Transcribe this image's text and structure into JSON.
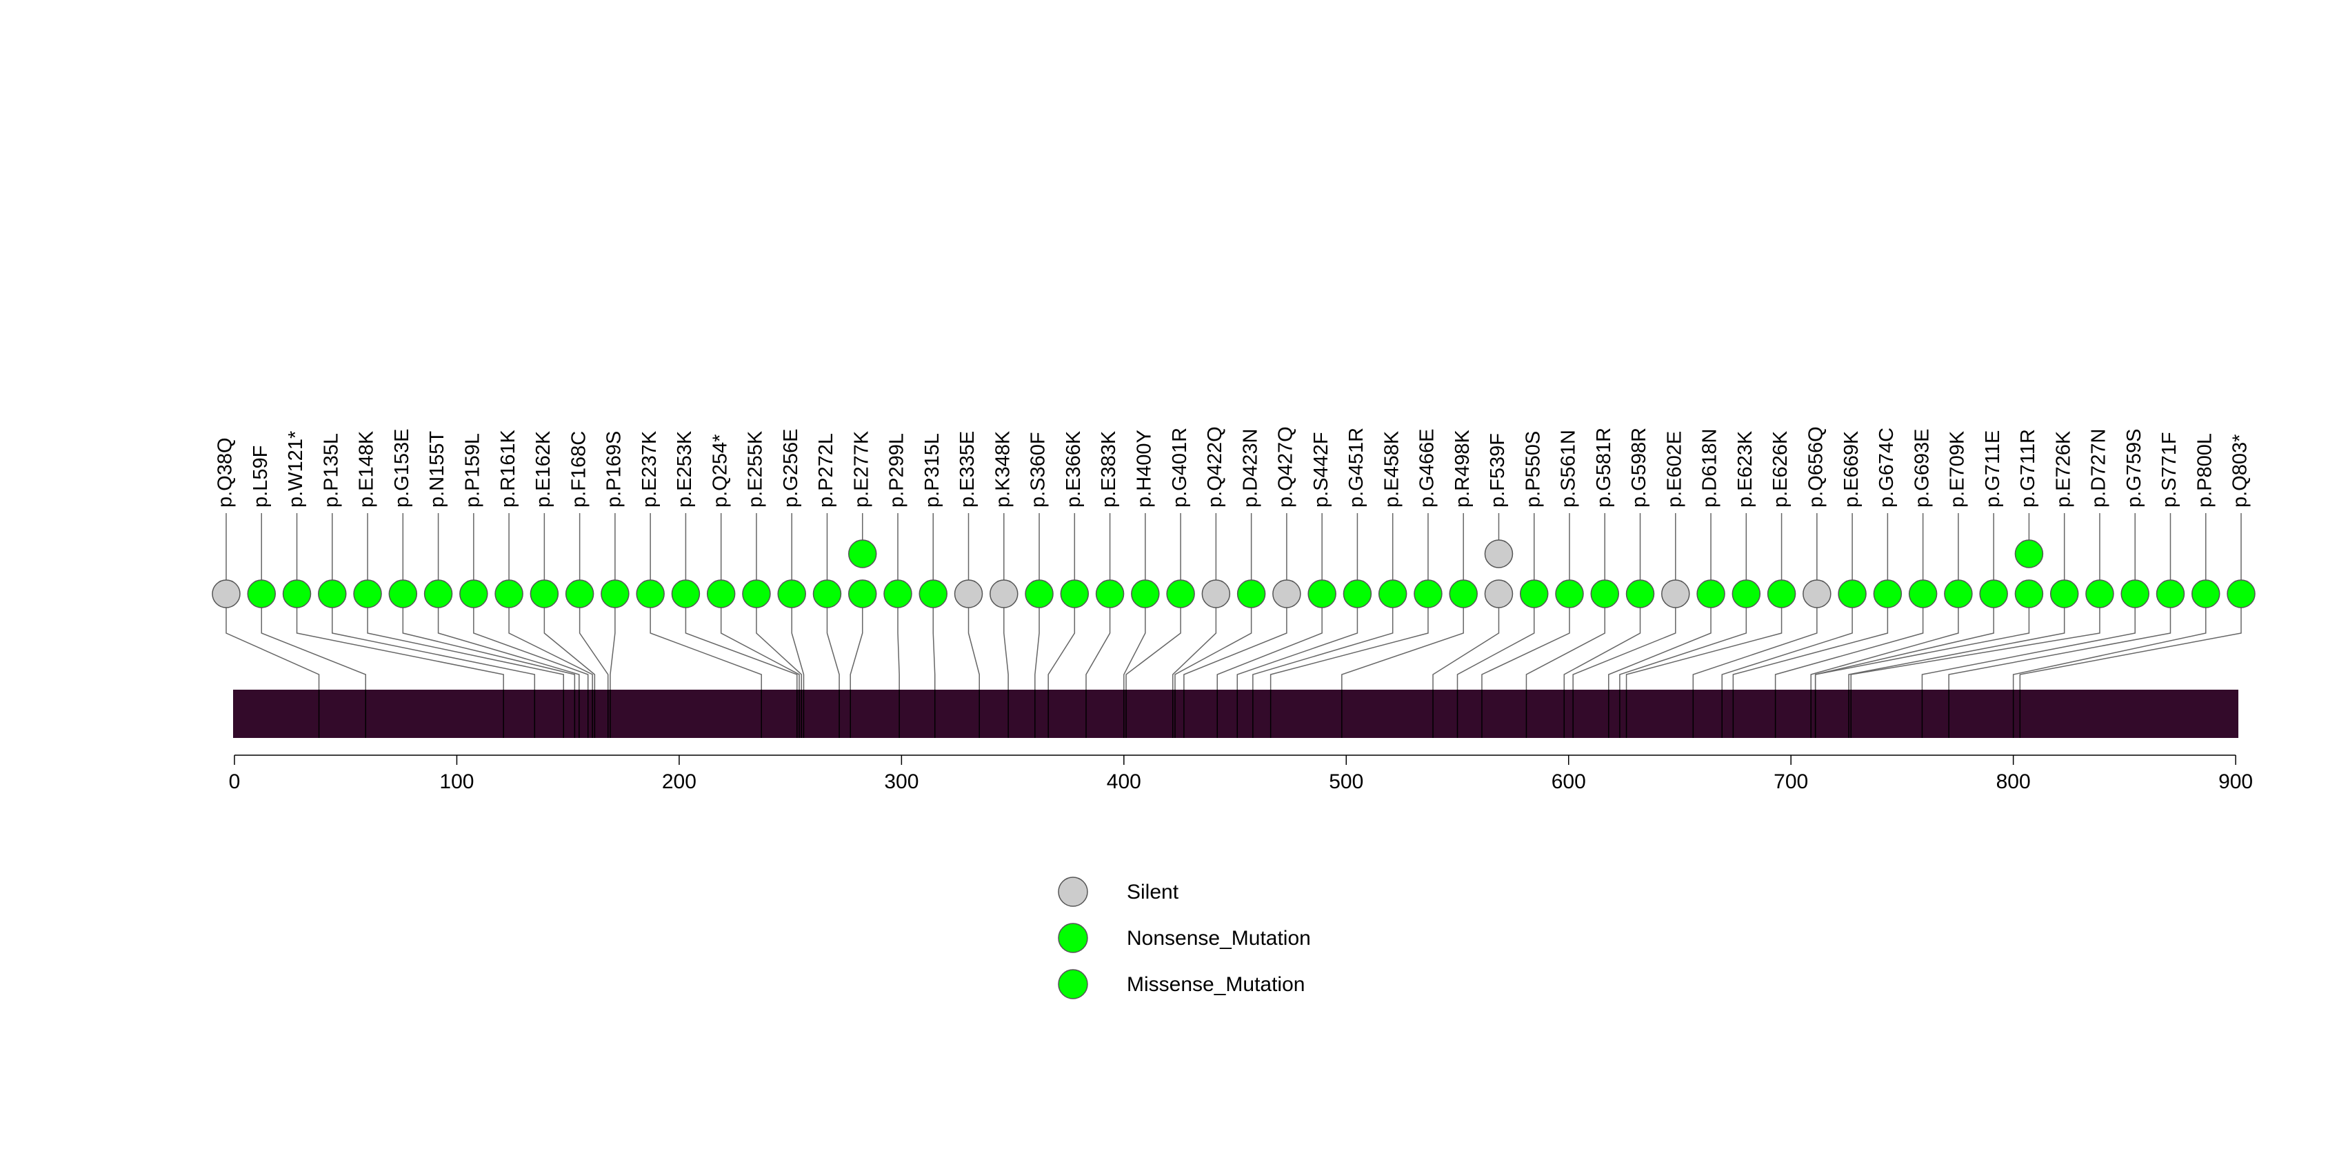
{
  "chart_data": {
    "type": "lollipop",
    "title": "",
    "xlabel": "",
    "ylabel": "",
    "xlim": [
      0,
      904
    ],
    "x_ticks": [
      0,
      100,
      200,
      300,
      400,
      500,
      600,
      700,
      800,
      900
    ],
    "protein_length": 904,
    "domain_color": "#330a2a",
    "legend": [
      {
        "label": "Silent",
        "color": "#cccccc"
      },
      {
        "label": "Nonsense_Mutation",
        "color": "#00ff00"
      },
      {
        "label": "Missense_Mutation",
        "color": "#00ff00"
      }
    ],
    "mutations": [
      {
        "label": "p.Q38Q",
        "position": 38,
        "type": "Silent",
        "count": 1,
        "color": "#cccccc"
      },
      {
        "label": "p.L59F",
        "position": 59,
        "type": "Missense_Mutation",
        "count": 1,
        "color": "#00ff00"
      },
      {
        "label": "p.W121*",
        "position": 121,
        "type": "Nonsense_Mutation",
        "count": 1,
        "color": "#00ff00"
      },
      {
        "label": "p.P135L",
        "position": 135,
        "type": "Missense_Mutation",
        "count": 1,
        "color": "#00ff00"
      },
      {
        "label": "p.E148K",
        "position": 148,
        "type": "Missense_Mutation",
        "count": 1,
        "color": "#00ff00"
      },
      {
        "label": "p.G153E",
        "position": 153,
        "type": "Missense_Mutation",
        "count": 1,
        "color": "#00ff00"
      },
      {
        "label": "p.N155T",
        "position": 155,
        "type": "Missense_Mutation",
        "count": 1,
        "color": "#00ff00"
      },
      {
        "label": "p.P159L",
        "position": 159,
        "type": "Missense_Mutation",
        "count": 1,
        "color": "#00ff00"
      },
      {
        "label": "p.R161K",
        "position": 161,
        "type": "Missense_Mutation",
        "count": 1,
        "color": "#00ff00"
      },
      {
        "label": "p.E162K",
        "position": 162,
        "type": "Missense_Mutation",
        "count": 1,
        "color": "#00ff00"
      },
      {
        "label": "p.F168C",
        "position": 168,
        "type": "Missense_Mutation",
        "count": 1,
        "color": "#00ff00"
      },
      {
        "label": "p.P169S",
        "position": 169,
        "type": "Missense_Mutation",
        "count": 1,
        "color": "#00ff00"
      },
      {
        "label": "p.E237K",
        "position": 237,
        "type": "Missense_Mutation",
        "count": 1,
        "color": "#00ff00"
      },
      {
        "label": "p.E253K",
        "position": 253,
        "type": "Missense_Mutation",
        "count": 1,
        "color": "#00ff00"
      },
      {
        "label": "p.Q254*",
        "position": 254,
        "type": "Nonsense_Mutation",
        "count": 1,
        "color": "#00ff00"
      },
      {
        "label": "p.E255K",
        "position": 255,
        "type": "Missense_Mutation",
        "count": 1,
        "color": "#00ff00"
      },
      {
        "label": "p.G256E",
        "position": 256,
        "type": "Missense_Mutation",
        "count": 1,
        "color": "#00ff00"
      },
      {
        "label": "p.P272L",
        "position": 272,
        "type": "Missense_Mutation",
        "count": 1,
        "color": "#00ff00"
      },
      {
        "label": "p.E277K",
        "position": 277,
        "type": "Missense_Mutation",
        "count": 2,
        "color": "#00ff00"
      },
      {
        "label": "p.P299L",
        "position": 299,
        "type": "Missense_Mutation",
        "count": 1,
        "color": "#00ff00"
      },
      {
        "label": "p.P315L",
        "position": 315,
        "type": "Missense_Mutation",
        "count": 1,
        "color": "#00ff00"
      },
      {
        "label": "p.E335E",
        "position": 335,
        "type": "Silent",
        "count": 1,
        "color": "#cccccc"
      },
      {
        "label": "p.K348K",
        "position": 348,
        "type": "Silent",
        "count": 1,
        "color": "#cccccc"
      },
      {
        "label": "p.S360F",
        "position": 360,
        "type": "Missense_Mutation",
        "count": 1,
        "color": "#00ff00"
      },
      {
        "label": "p.E366K",
        "position": 366,
        "type": "Missense_Mutation",
        "count": 1,
        "color": "#00ff00"
      },
      {
        "label": "p.E383K",
        "position": 383,
        "type": "Missense_Mutation",
        "count": 1,
        "color": "#00ff00"
      },
      {
        "label": "p.H400Y",
        "position": 400,
        "type": "Missense_Mutation",
        "count": 1,
        "color": "#00ff00"
      },
      {
        "label": "p.G401R",
        "position": 401,
        "type": "Missense_Mutation",
        "count": 1,
        "color": "#00ff00"
      },
      {
        "label": "p.Q422Q",
        "position": 422,
        "type": "Silent",
        "count": 1,
        "color": "#cccccc"
      },
      {
        "label": "p.D423N",
        "position": 423,
        "type": "Missense_Mutation",
        "count": 1,
        "color": "#00ff00"
      },
      {
        "label": "p.Q427Q",
        "position": 427,
        "type": "Silent",
        "count": 1,
        "color": "#cccccc"
      },
      {
        "label": "p.S442F",
        "position": 442,
        "type": "Missense_Mutation",
        "count": 1,
        "color": "#00ff00"
      },
      {
        "label": "p.G451R",
        "position": 451,
        "type": "Missense_Mutation",
        "count": 1,
        "color": "#00ff00"
      },
      {
        "label": "p.E458K",
        "position": 458,
        "type": "Missense_Mutation",
        "count": 1,
        "color": "#00ff00"
      },
      {
        "label": "p.G466E",
        "position": 466,
        "type": "Missense_Mutation",
        "count": 1,
        "color": "#00ff00"
      },
      {
        "label": "p.R498K",
        "position": 498,
        "type": "Missense_Mutation",
        "count": 1,
        "color": "#00ff00"
      },
      {
        "label": "p.F539F",
        "position": 539,
        "type": "Silent",
        "count": 2,
        "color": "#cccccc"
      },
      {
        "label": "p.P550S",
        "position": 550,
        "type": "Missense_Mutation",
        "count": 1,
        "color": "#00ff00"
      },
      {
        "label": "p.S561N",
        "position": 561,
        "type": "Missense_Mutation",
        "count": 1,
        "color": "#00ff00"
      },
      {
        "label": "p.G581R",
        "position": 581,
        "type": "Missense_Mutation",
        "count": 1,
        "color": "#00ff00"
      },
      {
        "label": "p.G598R",
        "position": 598,
        "type": "Missense_Mutation",
        "count": 1,
        "color": "#00ff00"
      },
      {
        "label": "p.E602E",
        "position": 602,
        "type": "Silent",
        "count": 1,
        "color": "#cccccc"
      },
      {
        "label": "p.D618N",
        "position": 618,
        "type": "Missense_Mutation",
        "count": 1,
        "color": "#00ff00"
      },
      {
        "label": "p.E623K",
        "position": 623,
        "type": "Missense_Mutation",
        "count": 1,
        "color": "#00ff00"
      },
      {
        "label": "p.E626K",
        "position": 626,
        "type": "Missense_Mutation",
        "count": 1,
        "color": "#00ff00"
      },
      {
        "label": "p.Q656Q",
        "position": 656,
        "type": "Silent",
        "count": 1,
        "color": "#cccccc"
      },
      {
        "label": "p.E669K",
        "position": 669,
        "type": "Missense_Mutation",
        "count": 1,
        "color": "#00ff00"
      },
      {
        "label": "p.G674C",
        "position": 674,
        "type": "Missense_Mutation",
        "count": 1,
        "color": "#00ff00"
      },
      {
        "label": "p.G693E",
        "position": 693,
        "type": "Missense_Mutation",
        "count": 1,
        "color": "#00ff00"
      },
      {
        "label": "p.E709K",
        "position": 709,
        "type": "Missense_Mutation",
        "count": 1,
        "color": "#00ff00"
      },
      {
        "label": "p.G711E",
        "position": 711,
        "type": "Missense_Mutation",
        "count": 1,
        "color": "#00ff00"
      },
      {
        "label": "p.G711R",
        "position": 711,
        "type": "Missense_Mutation",
        "count": 2,
        "color": "#00ff00"
      },
      {
        "label": "p.E726K",
        "position": 726,
        "type": "Missense_Mutation",
        "count": 1,
        "color": "#00ff00"
      },
      {
        "label": "p.D727N",
        "position": 727,
        "type": "Missense_Mutation",
        "count": 1,
        "color": "#00ff00"
      },
      {
        "label": "p.G759S",
        "position": 759,
        "type": "Missense_Mutation",
        "count": 1,
        "color": "#00ff00"
      },
      {
        "label": "p.S771F",
        "position": 771,
        "type": "Missense_Mutation",
        "count": 1,
        "color": "#00ff00"
      },
      {
        "label": "p.P800L",
        "position": 800,
        "type": "Missense_Mutation",
        "count": 1,
        "color": "#00ff00"
      },
      {
        "label": "p.Q803*",
        "position": 803,
        "type": "Nonsense_Mutation",
        "count": 1,
        "color": "#00ff00"
      }
    ]
  }
}
